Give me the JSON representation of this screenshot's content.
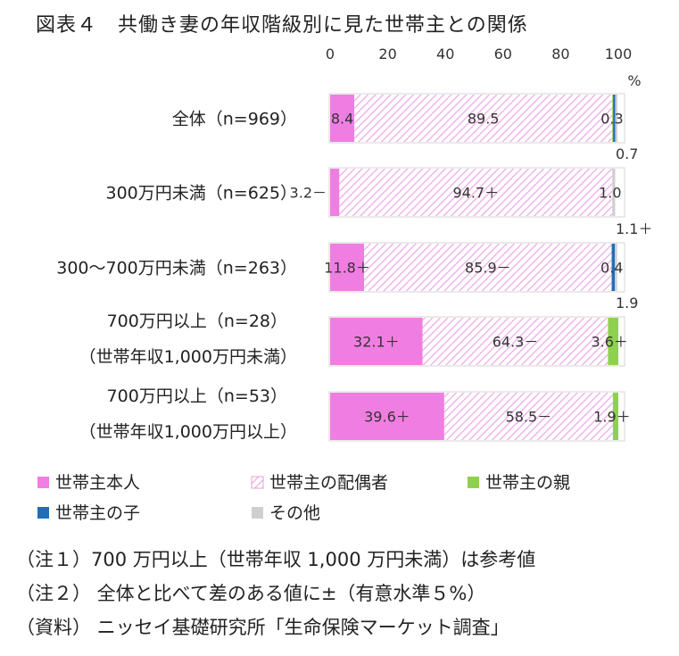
{
  "title": "図表４　共働き妻の年収階級別に見た世帯主との関係",
  "chart_data": {
    "type": "bar",
    "orientation": "horizontal",
    "stacked": true,
    "xlim": [
      0,
      100
    ],
    "xticks": [
      "0",
      "20",
      "40",
      "60",
      "80",
      "100"
    ],
    "unit": "%",
    "categories": [
      [
        "全体（n=969）"
      ],
      [
        "300万円未満（n=625）"
      ],
      [
        "300～700万円未満（n=263）"
      ],
      [
        "700万円以上（n=28）",
        "（世帯年収1,000万円未満）"
      ],
      [
        "700万円以上（n=53）",
        "（世帯年収1,000万円以上）"
      ]
    ],
    "series": [
      {
        "name": "世帯主本人",
        "color": "#f07ee2",
        "values": [
          8.4,
          3.2,
          11.8,
          32.1,
          39.6
        ],
        "labels": [
          "8.4",
          "3.2－",
          "11.8＋",
          "32.1＋",
          "39.6＋"
        ]
      },
      {
        "name": "世帯主の配偶者",
        "color": "#f2b3e8",
        "pattern": "hatch",
        "values": [
          89.5,
          94.7,
          85.9,
          64.3,
          58.5
        ],
        "labels": [
          "89.5",
          "94.7＋",
          "85.9－",
          "64.3－",
          "58.5－"
        ]
      },
      {
        "name": "世帯主の親",
        "color": "#8fd14f",
        "values": [
          0.3,
          0.0,
          0.0,
          3.6,
          1.9
        ],
        "labels": [
          "",
          "",
          "",
          "3.6＋",
          "1.9＋"
        ]
      },
      {
        "name": "世帯主の子",
        "color": "#1f6fb7",
        "values": [
          0.7,
          0.0,
          1.1,
          0.0,
          0.0
        ],
        "labels": [
          "",
          "",
          "",
          "",
          ""
        ]
      },
      {
        "name": "その他",
        "color": "#cfcfcf",
        "values": [
          0.3,
          1.0,
          0.4,
          0.0,
          0.0
        ],
        "labels": [
          "0.3",
          "1.0",
          "0.4",
          "",
          ""
        ]
      }
    ],
    "above_labels": [
      "0.7",
      "1.1＋",
      "1.9"
    ],
    "legend_placement": "bottom"
  },
  "notes": [
    "（注１）700 万円以上（世帯年収 1,000 万円未満）は参考値",
    "（注２） 全体と比べて差のある値に±（有意水準５%）",
    "（資料） ニッセイ基礎研究所「生命保険マーケット調査」"
  ]
}
